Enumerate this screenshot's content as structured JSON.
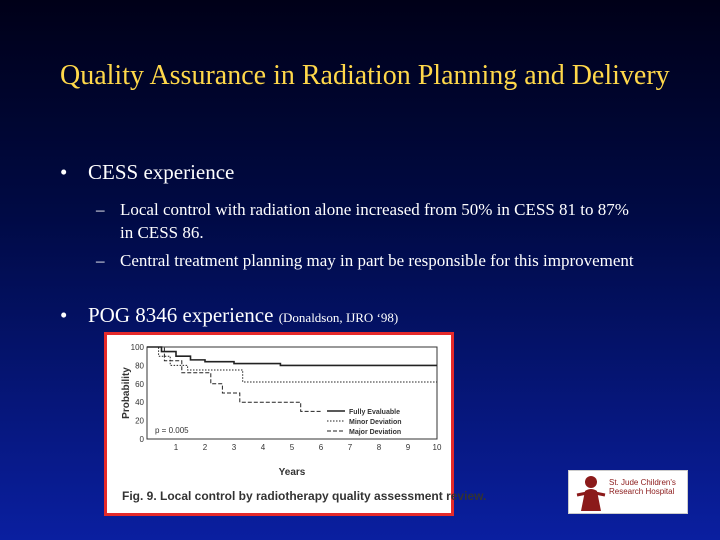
{
  "title": "Quality Assurance in Radiation Planning and Delivery",
  "bullets": [
    {
      "text": "CESS experience",
      "sub": [
        "Local control with radiation alone increased from 50% in CESS 81 to 87% in CESS 86.",
        "Central treatment planning may in part be responsible for this improvement"
      ]
    },
    {
      "text": "POG 8346 experience",
      "citation": "(Donaldson, IJRO ‘98)"
    }
  ],
  "bullet_glyph": "•",
  "dash_glyph": "–",
  "colors": {
    "title": "#ffd84a",
    "text": "#ffffff",
    "frame": "#e52a2a"
  },
  "figure_caption": "Fig. 9.  Local control by radiotherapy quality assessment review.",
  "logo": {
    "name": "St. Jude Children's Research Hospital",
    "icon": "st-jude-child-icon"
  },
  "chart_data": {
    "type": "line",
    "xlabel": "Years",
    "ylabel": "Probability",
    "xlim": [
      0,
      10
    ],
    "ylim": [
      0,
      100
    ],
    "x_ticks": [
      1,
      2,
      3,
      4,
      5,
      6,
      7,
      8,
      9,
      10
    ],
    "y_ticks": [
      100,
      80,
      60,
      40,
      20,
      0
    ],
    "annotation": "p = 0.005",
    "legend_position": "bottom-right",
    "series": [
      {
        "name": "Fully Evaluable",
        "style": "solid",
        "points": [
          [
            0,
            100
          ],
          [
            0.5,
            95
          ],
          [
            1,
            90
          ],
          [
            1.5,
            86
          ],
          [
            2,
            84
          ],
          [
            3,
            82
          ],
          [
            4,
            82
          ],
          [
            4.6,
            80
          ],
          [
            10,
            80
          ]
        ]
      },
      {
        "name": "Minor Deviation",
        "style": "dotted",
        "points": [
          [
            0,
            100
          ],
          [
            0.4,
            90
          ],
          [
            0.8,
            80
          ],
          [
            1.4,
            75
          ],
          [
            3,
            75
          ],
          [
            3.3,
            62
          ],
          [
            10,
            62
          ]
        ]
      },
      {
        "name": "Major Deviation",
        "style": "dashed",
        "points": [
          [
            0,
            100
          ],
          [
            0.6,
            85
          ],
          [
            1.2,
            72
          ],
          [
            2.2,
            60
          ],
          [
            2.6,
            50
          ],
          [
            3.2,
            40
          ],
          [
            5,
            40
          ],
          [
            5.3,
            30
          ],
          [
            6,
            30
          ]
        ]
      }
    ]
  }
}
